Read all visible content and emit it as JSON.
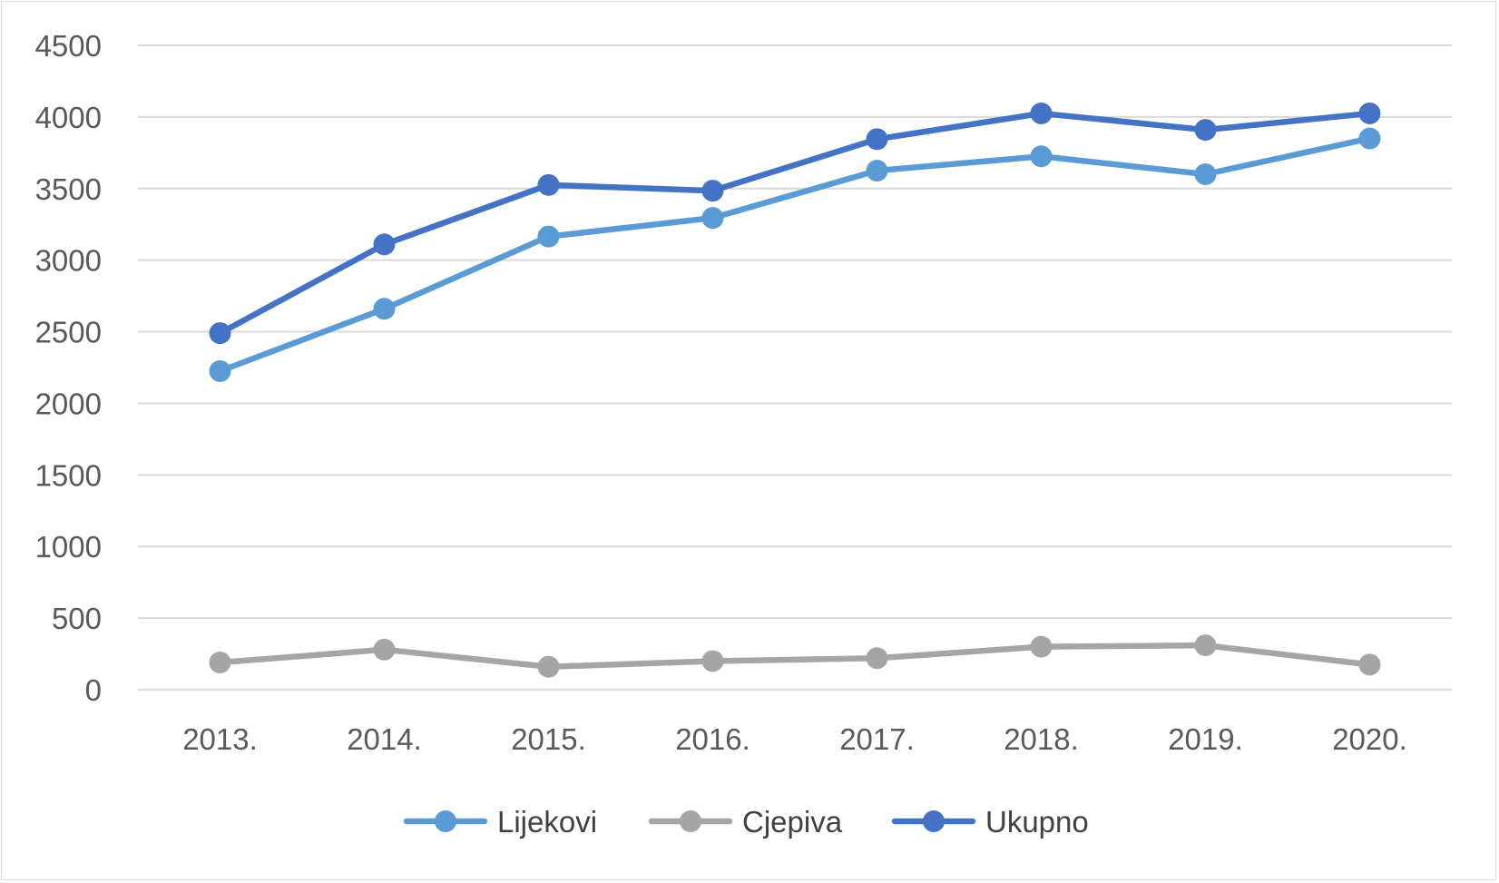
{
  "chart_data": {
    "type": "line",
    "title": "",
    "xlabel": "",
    "ylabel": "",
    "categories": [
      "2013.",
      "2014.",
      "2015.",
      "2016.",
      "2017.",
      "2018.",
      "2019.",
      "2020."
    ],
    "ylim": [
      0,
      4500
    ],
    "yticks": [
      0,
      500,
      1000,
      1500,
      2000,
      2500,
      3000,
      3500,
      4000,
      4500
    ],
    "grid": true,
    "legend_position": "bottom",
    "series": [
      {
        "name": "Lijekovi",
        "color": "#5b9bd5",
        "values": [
          2225,
          2660,
          3165,
          3295,
          3625,
          3725,
          3600,
          3850
        ]
      },
      {
        "name": "Cjepiva",
        "color": "#a5a5a5",
        "values": [
          190,
          280,
          160,
          200,
          220,
          300,
          310,
          175
        ]
      },
      {
        "name": "Ukupno",
        "color": "#4472c4",
        "values": [
          2490,
          3110,
          3525,
          3485,
          3845,
          4025,
          3910,
          4025
        ]
      }
    ]
  }
}
